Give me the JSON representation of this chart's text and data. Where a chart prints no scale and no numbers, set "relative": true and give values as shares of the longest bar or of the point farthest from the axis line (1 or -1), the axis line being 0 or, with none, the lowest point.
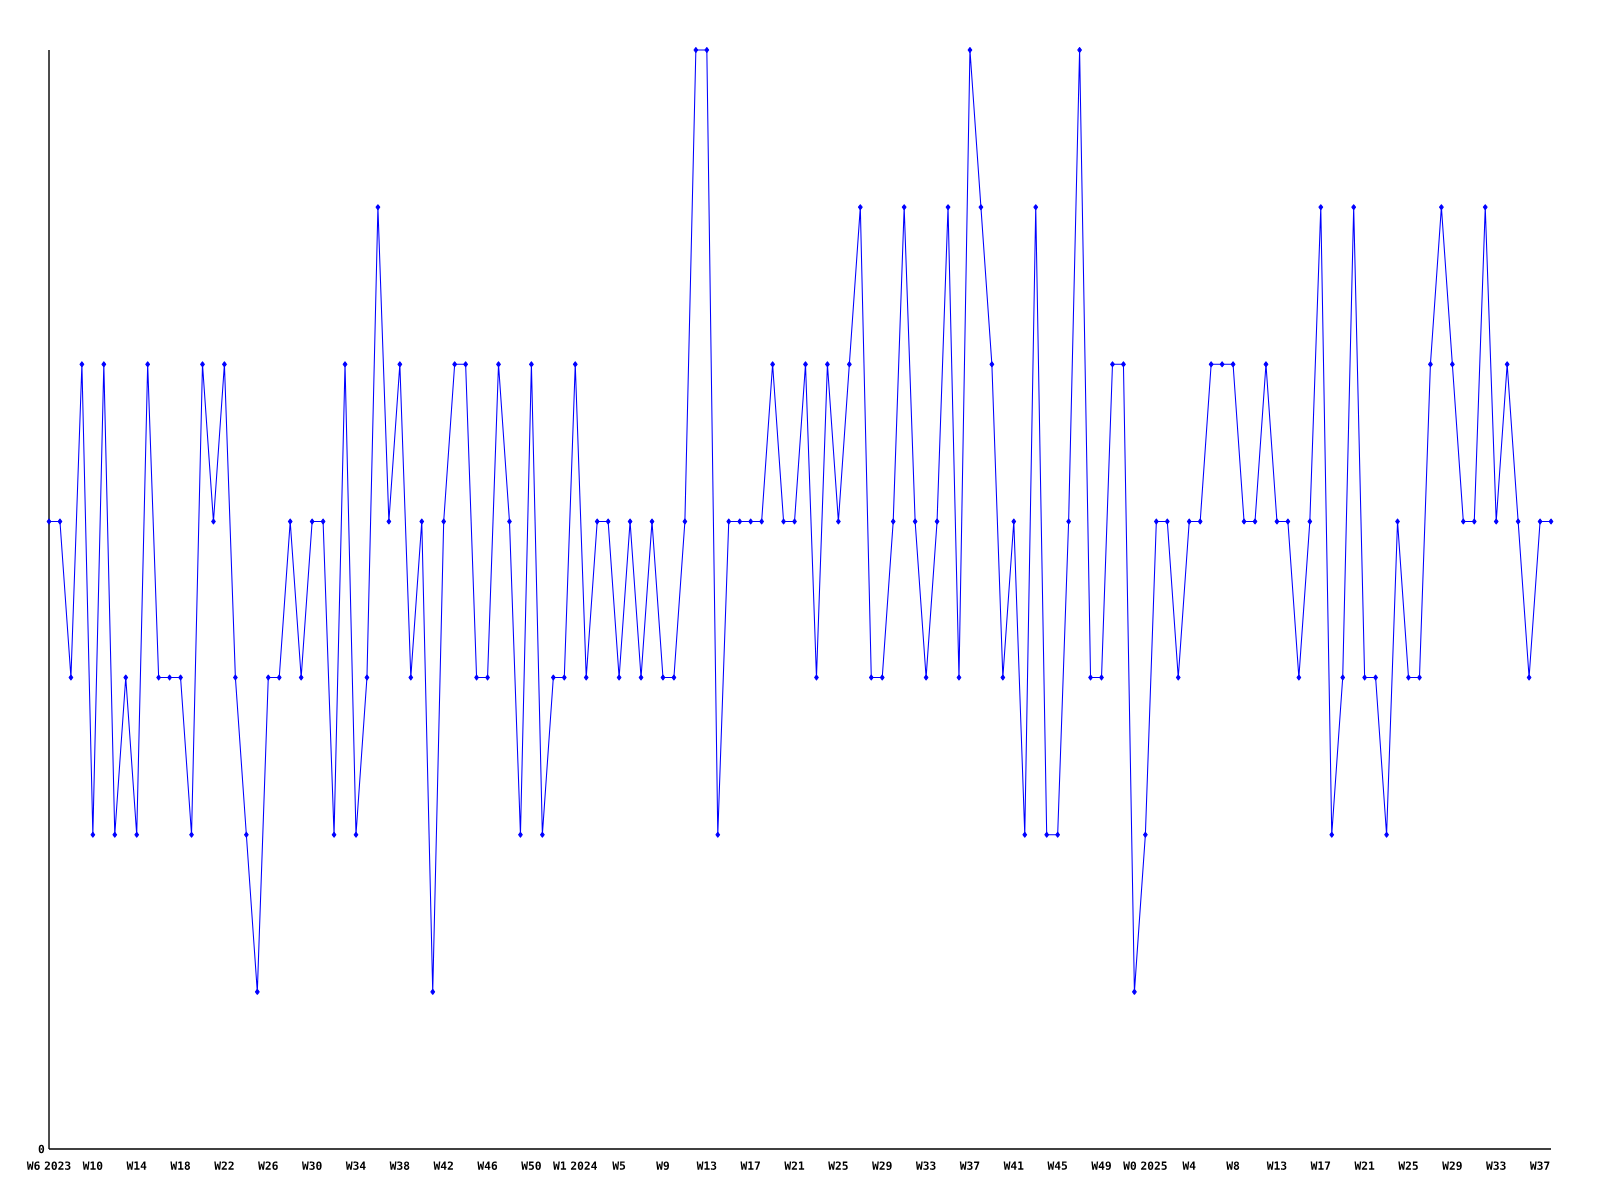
{
  "chart_data": {
    "type": "line",
    "relative": true,
    "marker": "diamond",
    "line_style": "solid",
    "annotations": [
      "0"
    ],
    "categories": [
      "W6 2023",
      null,
      null,
      null,
      "W10",
      null,
      null,
      null,
      "W14",
      null,
      null,
      null,
      "W18",
      null,
      null,
      null,
      "W22",
      null,
      null,
      null,
      "W26",
      null,
      null,
      null,
      "W30",
      null,
      null,
      null,
      "W34",
      null,
      null,
      null,
      "W38",
      null,
      null,
      null,
      "W42",
      null,
      null,
      null,
      "W46",
      null,
      null,
      null,
      "W50",
      null,
      null,
      null,
      "W1 2024",
      null,
      null,
      null,
      "W5",
      null,
      null,
      null,
      "W9",
      null,
      null,
      null,
      "W13",
      null,
      null,
      null,
      "W17",
      null,
      null,
      null,
      "W21",
      null,
      null,
      null,
      "W25",
      null,
      null,
      null,
      "W29",
      null,
      null,
      null,
      "W33",
      null,
      null,
      null,
      "W37",
      null,
      null,
      null,
      "W41",
      null,
      null,
      null,
      "W45",
      null,
      null,
      null,
      "W49",
      null,
      null,
      null,
      "W0 2025",
      null,
      null,
      null,
      "W4",
      null,
      null,
      null,
      "W8",
      null,
      null,
      null,
      "W13",
      null,
      null,
      null,
      "W17",
      null,
      null,
      null,
      "W21",
      null,
      null,
      null,
      "W25",
      null,
      null,
      null,
      "W29",
      null,
      null,
      null,
      "W33",
      null,
      null,
      null,
      "W37",
      null
    ],
    "series": [
      {
        "color": "#0000ff",
        "values": [
          0.571,
          0.571,
          0.429,
          0.714,
          0.286,
          0.714,
          0.286,
          0.429,
          0.286,
          0.714,
          0.429,
          0.429,
          0.429,
          0.286,
          0.714,
          0.571,
          0.714,
          0.429,
          0.286,
          0.143,
          0.429,
          0.429,
          0.571,
          0.429,
          0.571,
          0.571,
          0.286,
          0.714,
          0.286,
          0.429,
          0.857,
          0.571,
          0.714,
          0.429,
          0.571,
          0.143,
          0.571,
          0.714,
          0.714,
          0.429,
          0.429,
          0.714,
          0.571,
          0.286,
          0.714,
          0.286,
          0.429,
          0.429,
          0.714,
          0.429,
          0.571,
          0.571,
          0.429,
          0.571,
          0.429,
          0.571,
          0.429,
          0.429,
          0.571,
          1,
          1,
          0.286,
          0.571,
          0.571,
          0.571,
          0.571,
          0.714,
          0.571,
          0.571,
          0.714,
          0.429,
          0.714,
          0.571,
          0.714,
          0.857,
          0.429,
          0.429,
          0.571,
          0.857,
          0.571,
          0.429,
          0.571,
          0.857,
          0.429,
          1,
          0.857,
          0.714,
          0.429,
          0.571,
          0.286,
          0.857,
          0.286,
          0.286,
          0.571,
          1,
          0.429,
          0.429,
          0.714,
          0.714,
          0.143,
          0.286,
          0.571,
          0.571,
          0.429,
          0.571,
          0.571,
          0.714,
          0.714,
          0.714,
          0.571,
          0.571,
          0.714,
          0.571,
          0.571,
          0.429,
          0.571,
          0.857,
          0.286,
          0.429,
          0.857,
          0.429,
          0.429,
          0.286,
          0.571,
          0.429,
          0.429,
          0.714,
          0.857,
          0.714,
          0.571,
          0.571,
          0.857,
          0.571,
          0.714,
          0.571,
          0.429,
          0.571,
          0.571
        ]
      }
    ]
  }
}
